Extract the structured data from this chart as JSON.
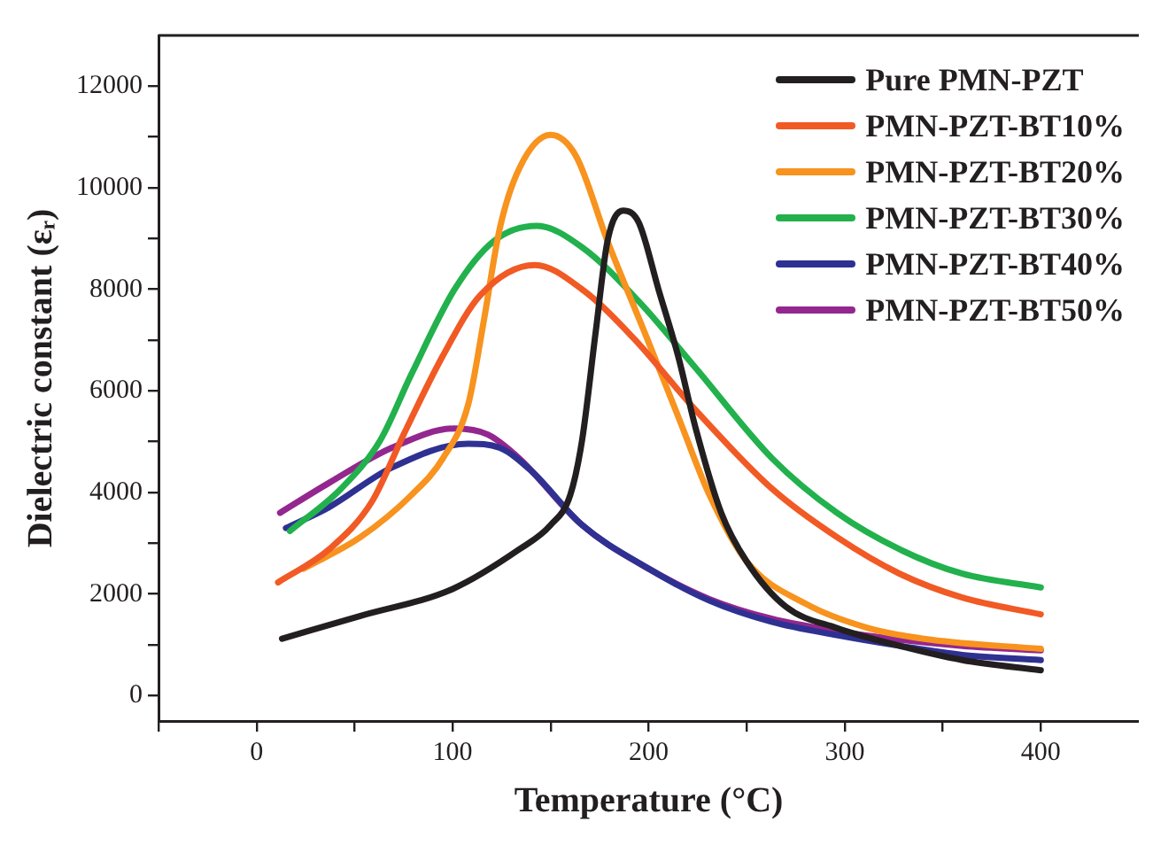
{
  "chart_data": {
    "type": "line",
    "xlabel": "Temperature (°C)",
    "ylabel": "Dielectric constant (εᵣ)",
    "xlim": [
      -50,
      450
    ],
    "xticks": [
      {
        "value": -50,
        "label": null
      },
      0,
      {
        "value": 50,
        "label": null
      },
      100,
      {
        "value": 150,
        "label": null
      },
      200,
      {
        "value": 250,
        "label": null
      },
      300,
      {
        "value": 350,
        "label": null
      },
      400
    ],
    "ylim": [
      -500,
      13000
    ],
    "yticks": [
      0,
      {
        "value": 1000,
        "label": null
      },
      2000,
      {
        "value": 3000,
        "label": null
      },
      4000,
      {
        "value": 5000,
        "label": null
      },
      6000,
      {
        "value": 7000,
        "label": null
      },
      8000,
      {
        "value": 9000,
        "label": null
      },
      10000,
      {
        "value": 11000,
        "label": null
      },
      12000
    ],
    "grid": false,
    "legend": "top right",
    "marker": "none",
    "line_style": "solid",
    "series": [
      {
        "name": "Pure PMN-PZT",
        "color": "#231f20",
        "x": [
          13,
          53,
          100,
          134,
          150,
          160,
          166,
          173,
          179,
          187,
          195,
          205,
          215,
          224,
          237,
          250,
          270,
          296,
          328,
          360,
          400
        ],
        "values": [
          1120,
          1570,
          2100,
          2880,
          3360,
          3950,
          5020,
          7170,
          8950,
          9550,
          9310,
          8000,
          6690,
          5260,
          3600,
          2640,
          1750,
          1330,
          980,
          700,
          500
        ]
      },
      {
        "name": "PMN-PZT-BT10%",
        "color": "#f15a24",
        "x": [
          11,
          37,
          59,
          75,
          95,
          114,
          142,
          166,
          192,
          224,
          263,
          296,
          328,
          360,
          400
        ],
        "values": [
          2230,
          2880,
          3830,
          5140,
          6690,
          7880,
          8480,
          8000,
          7050,
          5620,
          4070,
          3120,
          2400,
          1930,
          1600
        ]
      },
      {
        "name": "PMN-PZT-BT20%",
        "color": "#f7931e",
        "x": [
          24,
          53,
          79,
          95,
          108,
          116,
          124,
          134,
          150,
          163,
          179,
          199,
          215,
          231,
          250,
          280,
          312,
          344,
          400
        ],
        "values": [
          2500,
          3120,
          3950,
          4670,
          5740,
          7400,
          9190,
          10380,
          11040,
          10620,
          8950,
          7050,
          5500,
          3950,
          2640,
          1810,
          1330,
          1100,
          920
        ]
      },
      {
        "name": "PMN-PZT-BT30%",
        "color": "#22b14c",
        "x": [
          17,
          43,
          63,
          79,
          101,
          121,
          143,
          166,
          195,
          224,
          263,
          296,
          328,
          360,
          400
        ],
        "values": [
          3240,
          4070,
          5020,
          6330,
          8000,
          8950,
          9250,
          8830,
          7760,
          6450,
          4670,
          3600,
          2880,
          2400,
          2130
        ]
      },
      {
        "name": "PMN-PZT-BT40%",
        "color": "#2e3192",
        "x": [
          15,
          37,
          69,
          108,
          124,
          140,
          166,
          199,
          231,
          263,
          296,
          328,
          360,
          400
        ],
        "values": [
          3300,
          3710,
          4490,
          4960,
          4880,
          4430,
          3360,
          2520,
          1870,
          1450,
          1190,
          980,
          800,
          700
        ]
      },
      {
        "name": "PMN-PZT-BT50%",
        "color": "#93278f",
        "x": [
          12,
          37,
          69,
          101,
          118,
          134,
          166,
          199,
          231,
          263,
          296,
          328,
          360,
          400
        ],
        "values": [
          3600,
          4190,
          4880,
          5260,
          5140,
          4670,
          3360,
          2520,
          1900,
          1510,
          1270,
          1100,
          980,
          890
        ]
      }
    ]
  }
}
